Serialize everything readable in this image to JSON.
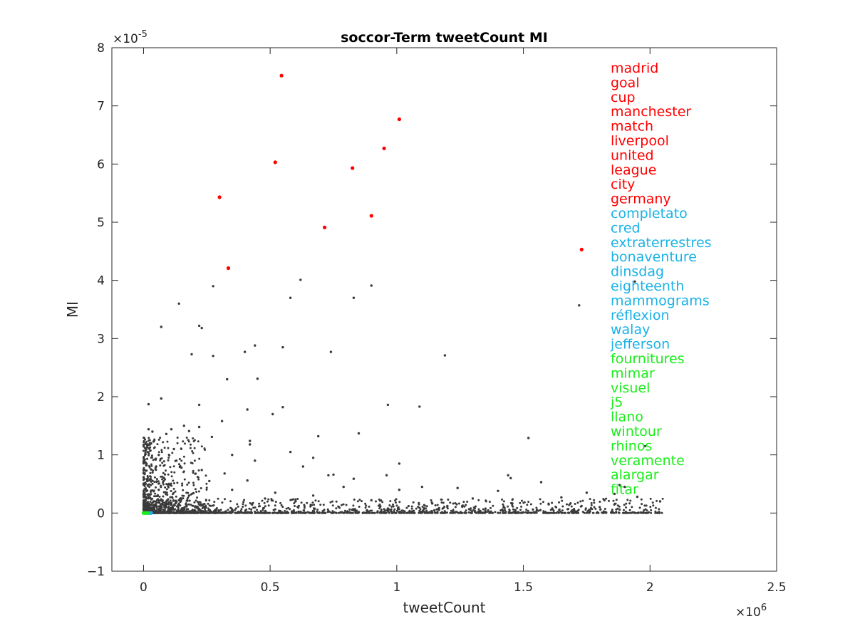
{
  "chart_data": {
    "type": "scatter",
    "title": "soccor-Term tweetCount MI",
    "xlabel": "tweetCount",
    "ylabel": "MI",
    "xlim": [
      -0.125,
      2.5
    ],
    "ylim": [
      -1,
      8
    ],
    "x_exponent_label": "×10",
    "x_exponent_power": "6",
    "y_exponent_label": "×10",
    "y_exponent_power": "-5",
    "x_ticks": [
      0,
      0.5,
      1,
      1.5,
      2,
      2.5
    ],
    "x_tick_labels": [
      "0",
      "0.5",
      "1",
      "1.5",
      "2",
      "2.5"
    ],
    "y_ticks": [
      -1,
      0,
      1,
      2,
      3,
      4,
      5,
      6,
      7,
      8
    ],
    "y_tick_labels": [
      "−1",
      "0",
      "1",
      "2",
      "3",
      "4",
      "5",
      "6",
      "7",
      "8"
    ],
    "grid": false,
    "legend_placement": "top-right",
    "colors": {
      "top_terms": "#ff0000",
      "mid_terms": "#1ab2e6",
      "low_terms": "#1aed1a",
      "other": "#3a3a3a"
    },
    "highlighted_terms": [
      {
        "term": "madrid",
        "group": "top_terms"
      },
      {
        "term": "goal",
        "group": "top_terms"
      },
      {
        "term": "cup",
        "group": "top_terms"
      },
      {
        "term": "manchester",
        "group": "top_terms"
      },
      {
        "term": "match",
        "group": "top_terms"
      },
      {
        "term": "liverpool",
        "group": "top_terms"
      },
      {
        "term": "united",
        "group": "top_terms"
      },
      {
        "term": "league",
        "group": "top_terms"
      },
      {
        "term": "city",
        "group": "top_terms"
      },
      {
        "term": "germany",
        "group": "top_terms"
      },
      {
        "term": "completato",
        "group": "mid_terms"
      },
      {
        "term": "cred",
        "group": "mid_terms"
      },
      {
        "term": "extraterrestres",
        "group": "mid_terms"
      },
      {
        "term": "bonaventure",
        "group": "mid_terms"
      },
      {
        "term": "dinsdag",
        "group": "mid_terms"
      },
      {
        "term": "eighteenth",
        "group": "mid_terms"
      },
      {
        "term": "mammograms",
        "group": "mid_terms"
      },
      {
        "term": "réflexion",
        "group": "mid_terms"
      },
      {
        "term": "walay",
        "group": "mid_terms"
      },
      {
        "term": "jefferson",
        "group": "mid_terms"
      },
      {
        "term": "fournitures",
        "group": "low_terms"
      },
      {
        "term": "mimar",
        "group": "low_terms"
      },
      {
        "term": "visuel",
        "group": "low_terms"
      },
      {
        "term": "j5",
        "group": "low_terms"
      },
      {
        "term": "llano",
        "group": "low_terms"
      },
      {
        "term": "wintour",
        "group": "low_terms"
      },
      {
        "term": "rhinos",
        "group": "low_terms"
      },
      {
        "term": "veramente",
        "group": "low_terms"
      },
      {
        "term": "alargar",
        "group": "low_terms"
      },
      {
        "term": "fitar",
        "group": "low_terms"
      }
    ],
    "series": [
      {
        "group": "top_terms",
        "points": [
          [
            0.545,
            7.52
          ],
          [
            1.01,
            6.77
          ],
          [
            0.95,
            6.27
          ],
          [
            0.52,
            6.03
          ],
          [
            0.825,
            5.93
          ],
          [
            0.3,
            5.43
          ],
          [
            0.9,
            5.11
          ],
          [
            0.715,
            4.91
          ],
          [
            1.73,
            4.53
          ],
          [
            0.335,
            4.21
          ]
        ]
      },
      {
        "group": "mid_terms",
        "points": [
          [
            0.03,
            0.0
          ],
          [
            0.025,
            0.0
          ],
          [
            0.02,
            0.0
          ]
        ]
      },
      {
        "group": "low_terms",
        "points": [
          [
            0.0,
            0.0
          ],
          [
            0.005,
            0.0
          ],
          [
            0.01,
            0.0
          ],
          [
            0.015,
            0.0
          ]
        ]
      },
      {
        "group": "other",
        "points": [
          [
            0.62,
            4.01
          ],
          [
            0.275,
            3.9
          ],
          [
            0.9,
            3.91
          ],
          [
            0.58,
            3.7
          ],
          [
            0.83,
            3.7
          ],
          [
            0.14,
            3.6
          ],
          [
            1.72,
            3.57
          ],
          [
            1.94,
            3.98
          ],
          [
            0.07,
            3.2
          ],
          [
            0.22,
            3.22
          ],
          [
            0.23,
            3.18
          ],
          [
            0.44,
            2.88
          ],
          [
            0.55,
            2.85
          ],
          [
            0.4,
            2.77
          ],
          [
            0.74,
            2.77
          ],
          [
            0.19,
            2.73
          ],
          [
            0.275,
            2.7
          ],
          [
            1.19,
            2.71
          ],
          [
            0.33,
            2.3
          ],
          [
            0.45,
            2.31
          ],
          [
            0.02,
            1.87
          ],
          [
            0.07,
            1.97
          ],
          [
            0.22,
            1.86
          ],
          [
            0.55,
            1.82
          ],
          [
            0.41,
            1.78
          ],
          [
            0.51,
            1.7
          ],
          [
            0.965,
            1.86
          ],
          [
            1.09,
            1.83
          ],
          [
            0.31,
            1.58
          ],
          [
            0.16,
            1.5
          ],
          [
            0.22,
            1.48
          ],
          [
            0.02,
            1.44
          ],
          [
            0.11,
            1.44
          ],
          [
            0.18,
            1.41
          ],
          [
            0.035,
            1.4
          ],
          [
            0.09,
            1.36
          ],
          [
            0.27,
            1.31
          ],
          [
            0.42,
            1.24
          ],
          [
            0.42,
            1.18
          ],
          [
            0.69,
            1.32
          ],
          [
            0.85,
            1.37
          ],
          [
            1.52,
            1.29
          ],
          [
            0.04,
            1.23
          ],
          [
            0.12,
            1.1
          ],
          [
            0.06,
            1.0
          ],
          [
            0.58,
            1.05
          ],
          [
            0.35,
            1.0
          ],
          [
            0.67,
            0.95
          ],
          [
            1.98,
            1.15
          ],
          [
            0.44,
            0.9
          ],
          [
            1.01,
            0.85
          ],
          [
            0.63,
            0.8
          ],
          [
            0.05,
            0.8
          ],
          [
            0.15,
            0.78
          ],
          [
            0.23,
            0.74
          ],
          [
            0.32,
            0.68
          ],
          [
            0.73,
            0.65
          ],
          [
            0.75,
            0.66
          ],
          [
            0.96,
            0.65
          ],
          [
            1.44,
            0.65
          ],
          [
            1.45,
            0.6
          ],
          [
            0.83,
            0.59
          ],
          [
            0.41,
            0.56
          ],
          [
            1.57,
            0.53
          ],
          [
            0.26,
            0.55
          ],
          [
            0.79,
            0.45
          ],
          [
            1.1,
            0.45
          ],
          [
            1.88,
            0.48
          ],
          [
            1.9,
            0.45
          ],
          [
            1.24,
            0.43
          ],
          [
            1.01,
            0.4
          ],
          [
            1.4,
            0.38
          ],
          [
            0.52,
            0.35
          ],
          [
            1.75,
            0.35
          ],
          [
            0.67,
            0.3
          ],
          [
            1.86,
            0.33
          ],
          [
            1.95,
            0.28
          ],
          [
            0.08,
            0.6
          ],
          [
            0.03,
            0.75
          ],
          [
            0.1,
            0.5
          ],
          [
            0.13,
            0.9
          ],
          [
            0.06,
            0.4
          ],
          [
            0.02,
            0.3
          ],
          [
            0.04,
            0.2
          ],
          [
            0.18,
            0.3
          ],
          [
            0.35,
            0.4
          ],
          [
            0.48,
            0.25
          ],
          [
            0.6,
            0.2
          ],
          [
            0.9,
            0.22
          ],
          [
            1.3,
            0.25
          ],
          [
            1.65,
            0.27
          ],
          [
            1.82,
            0.22
          ],
          [
            2.04,
            0.2
          ],
          [
            1.6,
            0.15
          ],
          [
            1.2,
            0.12
          ]
        ],
        "note_dense_band": "dense cluster near y≈0 for x in 0–2.05, and dense vertical cluster near x≈0 for y in 0–1.2"
      }
    ]
  }
}
